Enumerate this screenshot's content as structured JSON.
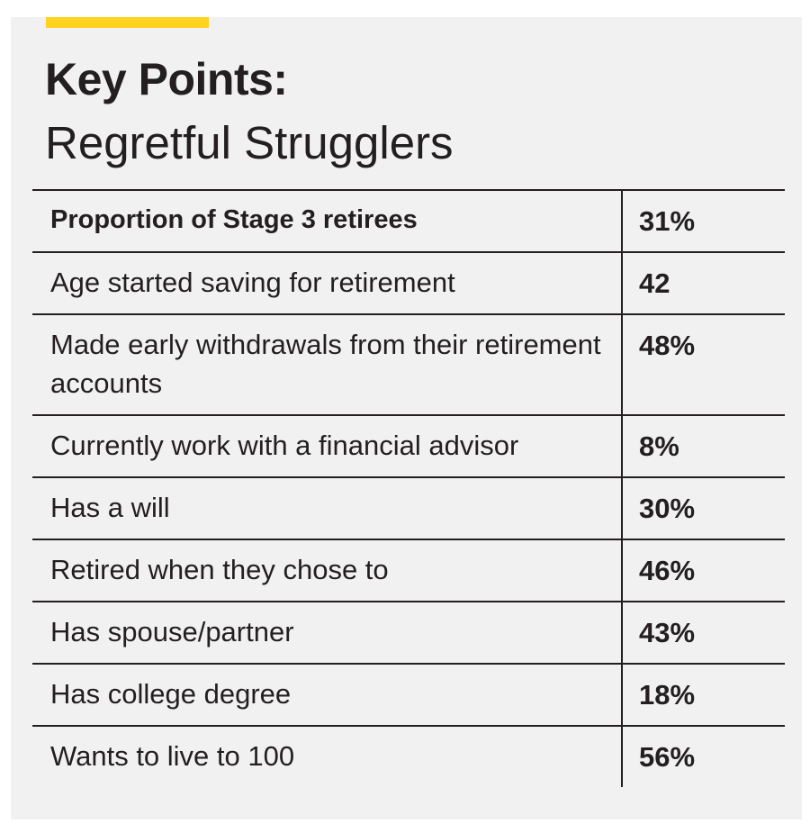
{
  "header": {
    "title_bold": "Key Points:",
    "title_light": "Regretful Strugglers"
  },
  "table": {
    "rows": [
      {
        "label": "Proportion of Stage 3 retirees",
        "value": "31%"
      },
      {
        "label": "Age started saving for retirement",
        "value": "42"
      },
      {
        "label": "Made early withdrawals from their retirement accounts",
        "value": "48%"
      },
      {
        "label": "Currently work with a financial advisor",
        "value": "8%"
      },
      {
        "label": "Has a will",
        "value": "30%"
      },
      {
        "label": "Retired when they chose to",
        "value": "46%"
      },
      {
        "label": "Has spouse/partner",
        "value": "43%"
      },
      {
        "label": "Has college degree",
        "value": "18%"
      },
      {
        "label": "Wants to live to 100",
        "value": "56%"
      }
    ]
  },
  "colors": {
    "accent": "#ffd320",
    "panel_background": "#f1f1f2",
    "text": "#231f20"
  }
}
